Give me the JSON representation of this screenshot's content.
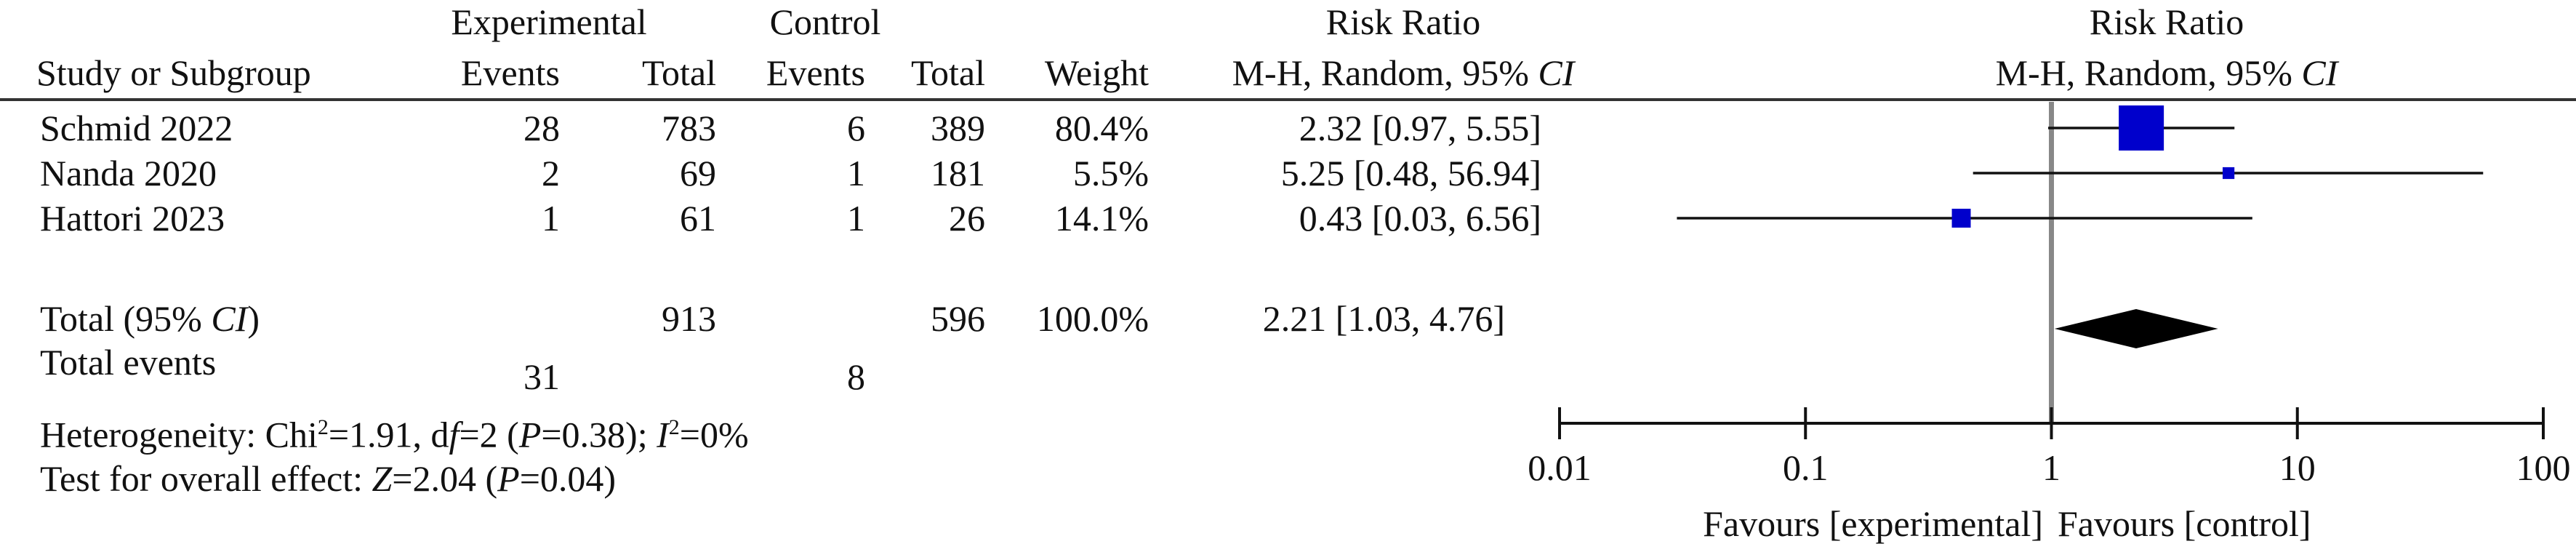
{
  "header": {
    "group_exp": "Experimental",
    "group_ctrl": "Control",
    "study_col": "Study or Subgroup",
    "events": "Events",
    "total": "Total",
    "weight": "Weight",
    "rr_title": "Risk Ratio",
    "rr_method": "M-H, Random, 95% ",
    "ci": "CI",
    "plot_title": "Risk Ratio"
  },
  "studies": [
    {
      "name": "Schmid 2022",
      "exp_events": "28",
      "exp_total": "783",
      "ctrl_events": "6",
      "ctrl_total": "389",
      "weight": "80.4%",
      "rr_text": "2.32 [0.97, 5.55]"
    },
    {
      "name": "Nanda 2020",
      "exp_events": "2",
      "exp_total": "69",
      "ctrl_events": "1",
      "ctrl_total": "181",
      "weight": "5.5%",
      "rr_text": "5.25 [0.48, 56.94]"
    },
    {
      "name": "Hattori 2023",
      "exp_events": "1",
      "exp_total": "61",
      "ctrl_events": "1",
      "ctrl_total": "26",
      "weight": "14.1%",
      "rr_text": "0.43 [0.03, 6.56]"
    }
  ],
  "total": {
    "label_a": "Total (95% ",
    "label_ci": "CI",
    "label_b": ")",
    "exp_total": "913",
    "ctrl_total": "596",
    "weight": "100.0%",
    "rr_text": "2.21 [1.03, 4.76]"
  },
  "total_events": {
    "label": "Total events",
    "exp": "31",
    "ctrl": "8"
  },
  "heterogeneity": {
    "p1": "Heterogeneity: Chi",
    "sup2": "2",
    "p2": "=1.91, d",
    "f": "f",
    "p3": "=2 (",
    "P": "P",
    "p4": "=0.38); ",
    "I": "I",
    "sup2b": "2",
    "p5": "=0%"
  },
  "overall": {
    "p1": "Test for overall effect: ",
    "Z": "Z",
    "p2": "=2.04 (",
    "P": "P",
    "p3": "=0.04)"
  },
  "favours": {
    "left": "Favours [experimental]",
    "right": "Favours [control]"
  },
  "colors": {
    "marker": "#0000cc",
    "diamond": "#000000",
    "refline": "#888888"
  },
  "chart_data": {
    "type": "forest",
    "scale": "log",
    "xlim": [
      0.01,
      100
    ],
    "ticks": [
      0.01,
      0.1,
      1,
      10,
      100
    ],
    "tick_labels": [
      "0.01",
      "0.1",
      "1",
      "10",
      "100"
    ],
    "reference_line": 1,
    "studies": [
      {
        "name": "Schmid 2022",
        "rr": 2.32,
        "lower": 0.97,
        "upper": 5.55,
        "weight": 80.4
      },
      {
        "name": "Nanda 2020",
        "rr": 5.25,
        "lower": 0.48,
        "upper": 56.94,
        "weight": 5.5
      },
      {
        "name": "Hattori 2023",
        "rr": 0.43,
        "lower": 0.03,
        "upper": 6.56,
        "weight": 14.1
      }
    ],
    "pooled": {
      "rr": 2.21,
      "lower": 1.03,
      "upper": 4.76
    }
  }
}
